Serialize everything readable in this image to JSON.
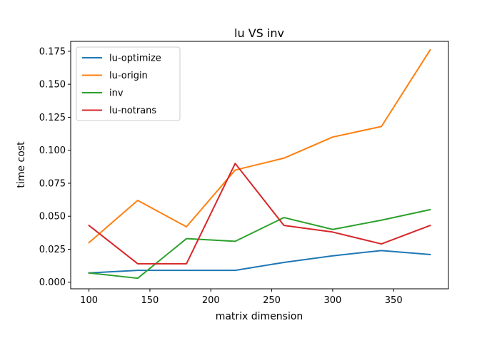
{
  "chart_data": {
    "type": "line",
    "title": "lu VS inv",
    "xlabel": "matrix dimension",
    "ylabel": "time cost",
    "xlim": [
      85,
      395
    ],
    "ylim": [
      -0.005,
      0.1825
    ],
    "xticks": [
      100,
      150,
      200,
      250,
      300,
      350
    ],
    "yticks": [
      0.0,
      0.025,
      0.05,
      0.075,
      0.1,
      0.125,
      0.15,
      0.175
    ],
    "ytick_labels": [
      "0.000",
      "0.025",
      "0.050",
      "0.075",
      "0.100",
      "0.125",
      "0.150",
      "0.175"
    ],
    "grid": false,
    "legend_position": "top-left",
    "x": [
      100,
      140,
      180,
      220,
      260,
      300,
      340,
      380
    ],
    "series": [
      {
        "name": "lu-optimize",
        "color": "#1f77b4",
        "values": [
          0.007,
          0.009,
          0.009,
          0.009,
          0.015,
          0.02,
          0.024,
          0.021
        ]
      },
      {
        "name": "lu-origin",
        "color": "#ff7f0e",
        "values": [
          0.03,
          0.062,
          0.042,
          0.085,
          0.094,
          0.11,
          0.118,
          0.176
        ]
      },
      {
        "name": "inv",
        "color": "#2ca02c",
        "values": [
          0.007,
          0.003,
          0.033,
          0.031,
          0.049,
          0.04,
          0.047,
          0.055
        ]
      },
      {
        "name": "lu-notrans",
        "color": "#d62728",
        "values": [
          0.043,
          0.014,
          0.014,
          0.09,
          0.043,
          0.038,
          0.029,
          0.043
        ]
      }
    ]
  }
}
